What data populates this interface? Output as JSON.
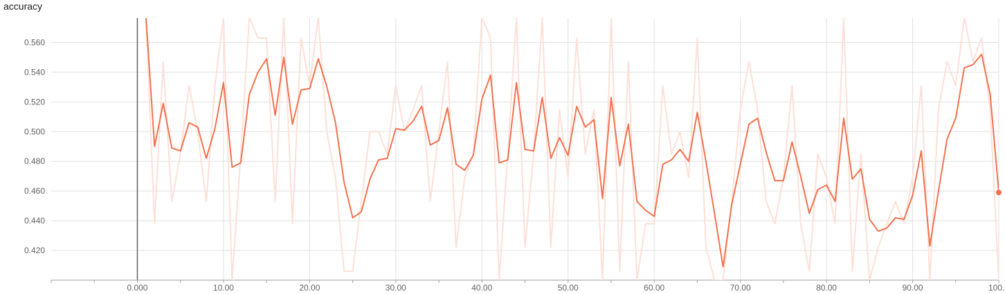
{
  "chart_data": {
    "type": "line",
    "title": "accuracy",
    "xlabel": "",
    "ylabel": "",
    "xlim": [
      -10,
      100
    ],
    "ylim": [
      0.4,
      0.5765
    ],
    "x_ticks": [
      "0.000",
      "10.00",
      "20.00",
      "30.00",
      "40.00",
      "50.00",
      "60.00",
      "70.00",
      "80.00",
      "90.00",
      "100.0"
    ],
    "y_ticks": [
      "0.420",
      "0.440",
      "0.460",
      "0.480",
      "0.500",
      "0.520",
      "0.540",
      "0.560"
    ],
    "grid": true,
    "colors": {
      "smoothed": "#f4714e",
      "raw": "#fde0d7",
      "grid": "#e0e0e0",
      "axis": "#9e9e9e",
      "zero_line": "#616161"
    },
    "series": [
      {
        "role": "smoothed",
        "x": [
          1,
          2,
          3,
          4,
          5,
          6,
          7,
          8,
          9,
          10,
          11,
          12,
          13,
          14,
          15,
          16,
          17,
          18,
          19,
          20,
          21,
          22,
          23,
          24,
          25,
          26,
          27,
          28,
          29,
          30,
          31,
          32,
          33,
          34,
          35,
          36,
          37,
          38,
          39,
          40,
          41,
          42,
          43,
          44,
          45,
          46,
          47,
          48,
          49,
          50,
          51,
          52,
          53,
          54,
          55,
          56,
          57,
          58,
          59,
          60,
          61,
          62,
          63,
          64,
          65,
          66,
          67,
          68,
          69,
          70,
          71,
          72,
          73,
          74,
          75,
          76,
          77,
          78,
          79,
          80,
          81,
          82,
          83,
          84,
          85,
          86,
          87,
          88,
          89,
          90,
          91,
          92,
          93,
          94,
          95,
          96,
          97,
          98,
          99,
          100
        ],
        "y": [
          0.577,
          0.49,
          0.519,
          0.489,
          0.487,
          0.506,
          0.503,
          0.482,
          0.502,
          0.533,
          0.476,
          0.479,
          0.525,
          0.54,
          0.549,
          0.511,
          0.55,
          0.505,
          0.528,
          0.529,
          0.549,
          0.53,
          0.506,
          0.466,
          0.442,
          0.446,
          0.468,
          0.481,
          0.482,
          0.502,
          0.501,
          0.507,
          0.517,
          0.491,
          0.494,
          0.516,
          0.478,
          0.474,
          0.484,
          0.522,
          0.538,
          0.479,
          0.481,
          0.533,
          0.488,
          0.487,
          0.523,
          0.482,
          0.496,
          0.484,
          0.517,
          0.503,
          0.508,
          0.455,
          0.523,
          0.477,
          0.505,
          0.453,
          0.447,
          0.443,
          0.478,
          0.481,
          0.488,
          0.48,
          0.513,
          0.48,
          0.445,
          0.409,
          0.451,
          0.478,
          0.505,
          0.509,
          0.486,
          0.467,
          0.467,
          0.493,
          0.47,
          0.445,
          0.461,
          0.464,
          0.453,
          0.509,
          0.468,
          0.475,
          0.441,
          0.433,
          0.435,
          0.442,
          0.441,
          0.457,
          0.487,
          0.423,
          0.46,
          0.495,
          0.509,
          0.543,
          0.545,
          0.552,
          0.525,
          0.459
        ]
      },
      {
        "role": "raw",
        "x": [
          1,
          2,
          3,
          4,
          5,
          6,
          7,
          8,
          9,
          10,
          11,
          12,
          13,
          14,
          15,
          16,
          17,
          18,
          19,
          20,
          21,
          22,
          23,
          24,
          25,
          26,
          27,
          28,
          29,
          30,
          31,
          32,
          33,
          34,
          35,
          36,
          37,
          38,
          39,
          40,
          41,
          42,
          43,
          44,
          45,
          46,
          47,
          48,
          49,
          50,
          51,
          52,
          53,
          54,
          55,
          56,
          57,
          58,
          59,
          60,
          61,
          62,
          63,
          64,
          65,
          66,
          67,
          68,
          69,
          70,
          71,
          72,
          73,
          74,
          75,
          76,
          77,
          78,
          79,
          80,
          81,
          82,
          83,
          84,
          85,
          86,
          87,
          88,
          89,
          90,
          91,
          92,
          93,
          94,
          95,
          96,
          97,
          98,
          99,
          100
        ],
        "y": [
          0.577,
          0.438,
          0.547,
          0.453,
          0.485,
          0.531,
          0.5,
          0.453,
          0.531,
          0.577,
          0.4,
          0.485,
          0.577,
          0.563,
          0.563,
          0.453,
          0.577,
          0.438,
          0.563,
          0.531,
          0.577,
          0.5,
          0.469,
          0.406,
          0.406,
          0.453,
          0.5,
          0.5,
          0.485,
          0.531,
          0.5,
          0.515,
          0.531,
          0.453,
          0.5,
          0.547,
          0.422,
          0.469,
          0.485,
          0.577,
          0.563,
          0.4,
          0.485,
          0.577,
          0.422,
          0.485,
          0.577,
          0.422,
          0.515,
          0.469,
          0.563,
          0.485,
          0.515,
          0.4,
          0.577,
          0.406,
          0.547,
          0.4,
          0.438,
          0.438,
          0.531,
          0.485,
          0.5,
          0.469,
          0.563,
          0.422,
          0.4,
          0.4,
          0.453,
          0.515,
          0.547,
          0.515,
          0.453,
          0.438,
          0.469,
          0.531,
          0.438,
          0.406,
          0.485,
          0.469,
          0.438,
          0.577,
          0.406,
          0.485,
          0.4,
          0.422,
          0.438,
          0.453,
          0.438,
          0.469,
          0.531,
          0.4,
          0.515,
          0.547,
          0.531,
          0.577,
          0.547,
          0.563,
          0.515,
          0.4
        ]
      }
    ],
    "last_point": {
      "x": 100,
      "y": 0.459
    }
  }
}
